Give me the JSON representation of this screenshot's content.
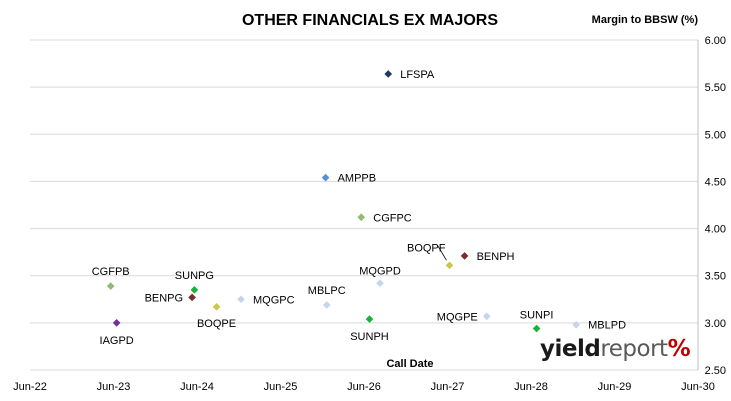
{
  "logo": {
    "yield": "yield",
    "report": "report",
    "pct": "%"
  },
  "chart_data": {
    "type": "scatter",
    "title": "OTHER FINANCIALS EX MAJORS",
    "xlabel": "Call Date",
    "ylabel": "Margin to BBSW (%)",
    "x_range": [
      "2022-06-01",
      "2030-06-01"
    ],
    "x_ticks": [
      "Jun-22",
      "Jun-23",
      "Jun-24",
      "Jun-25",
      "Jun-26",
      "Jun-27",
      "Jun-28",
      "Jun-29",
      "Jun-30"
    ],
    "ylim": [
      2.5,
      6.0
    ],
    "y_ticks": [
      "2.50",
      "3.00",
      "3.50",
      "4.00",
      "4.50",
      "5.00",
      "5.50",
      "6.00"
    ],
    "grid": "horizontal",
    "points": [
      {
        "name": "LFSPA",
        "x": "2026-09-15",
        "y": 5.64,
        "color": "#1f3864"
      },
      {
        "name": "AMPPB",
        "x": "2025-12-15",
        "y": 4.54,
        "color": "#5b8fd4"
      },
      {
        "name": "CGFPC",
        "x": "2026-05-20",
        "y": 4.12,
        "color": "#8fbc6f"
      },
      {
        "name": "BENPH",
        "x": "2027-08-15",
        "y": 3.71,
        "color": "#7b2d2d"
      },
      {
        "name": "BOQPF",
        "x": "2027-06-10",
        "y": 3.61,
        "color": "#c9c84a"
      },
      {
        "name": "MQGPD",
        "x": "2026-08-10",
        "y": 3.42,
        "color": "#c5d5ee"
      },
      {
        "name": "CGFPB",
        "x": "2023-05-20",
        "y": 3.39,
        "color": "#8fbc6f"
      },
      {
        "name": "SUNPG",
        "x": "2024-05-20",
        "y": 3.35,
        "color": "#1ab33a"
      },
      {
        "name": "BENPG",
        "x": "2024-05-10",
        "y": 3.27,
        "color": "#7b2d2d"
      },
      {
        "name": "MQGPC",
        "x": "2024-12-10",
        "y": 3.25,
        "color": "#c5d5ee"
      },
      {
        "name": "MBLPC",
        "x": "2025-12-20",
        "y": 3.19,
        "color": "#c5d5ee"
      },
      {
        "name": "BOQPE",
        "x": "2024-08-25",
        "y": 3.17,
        "color": "#c9c84a"
      },
      {
        "name": "MQGPE",
        "x": "2027-11-20",
        "y": 3.07,
        "color": "#c5d5ee"
      },
      {
        "name": "SUNPH",
        "x": "2026-06-25",
        "y": 3.04,
        "color": "#1ab33a"
      },
      {
        "name": "IAGPD",
        "x": "2023-06-15",
        "y": 3.0,
        "color": "#7030a0"
      },
      {
        "name": "MBLPD",
        "x": "2028-12-15",
        "y": 2.98,
        "color": "#c5d5ee"
      },
      {
        "name": "SUNPI",
        "x": "2028-06-25",
        "y": 2.94,
        "color": "#1ab33a"
      }
    ]
  }
}
